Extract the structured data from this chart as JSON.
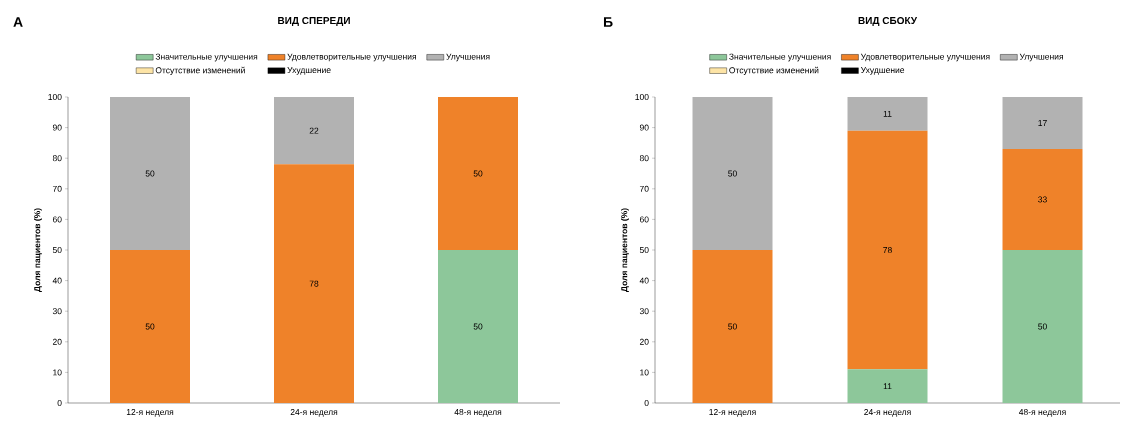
{
  "chart_data": [
    {
      "type": "bar",
      "stacked": true,
      "title": "ВИД СПЕРЕДИ",
      "ylabel": "Доля пациентов (%)",
      "annotations": [
        "А"
      ],
      "legend": "top",
      "categories": [
        "12-я неделя",
        "24-я неделя",
        "48-я неделя"
      ],
      "ylim": [
        0,
        100
      ],
      "yticks": [
        0,
        10,
        20,
        30,
        40,
        50,
        60,
        70,
        80,
        90,
        100
      ],
      "series": [
        {
          "name": "Значительные улучшения",
          "color": "#8dc79a",
          "values": [
            0,
            0,
            50
          ],
          "value_labels": [
            null,
            null,
            "50"
          ]
        },
        {
          "name": "Удовлетворительные улучшения",
          "color": "#ef8229",
          "values": [
            50,
            78,
            50
          ],
          "value_labels": [
            "50",
            "78",
            "50"
          ]
        },
        {
          "name": "Улучшения",
          "color": "#b2b2b2",
          "values": [
            50,
            22,
            0
          ],
          "value_labels": [
            "50",
            "22",
            null
          ]
        },
        {
          "name": "Отсутствие изменений",
          "color": "#fde4a6",
          "values": [
            0,
            0,
            0
          ],
          "value_labels": [
            null,
            null,
            null
          ]
        },
        {
          "name": "Ухудшение",
          "color": "#000000",
          "values": [
            0,
            0,
            0
          ],
          "value_labels": [
            null,
            null,
            null
          ]
        }
      ]
    },
    {
      "type": "bar",
      "stacked": true,
      "title": "ВИД СБОКУ",
      "ylabel": "Доля пациентов (%)",
      "annotations": [
        "Б"
      ],
      "legend": "top",
      "categories": [
        "12-я неделя",
        "24-я неделя",
        "48-я неделя"
      ],
      "ylim": [
        0,
        100
      ],
      "yticks": [
        0,
        10,
        20,
        30,
        40,
        50,
        60,
        70,
        80,
        90,
        100
      ],
      "series": [
        {
          "name": "Значительные улучшения",
          "color": "#8dc79a",
          "values": [
            0,
            11,
            50
          ],
          "value_labels": [
            null,
            "11",
            "50"
          ]
        },
        {
          "name": "Удовлетворительные улучшения",
          "color": "#ef8229",
          "values": [
            50,
            78,
            33
          ],
          "value_labels": [
            "50",
            "78",
            "33"
          ]
        },
        {
          "name": "Улучшения",
          "color": "#b2b2b2",
          "values": [
            50,
            11,
            17
          ],
          "value_labels": [
            "50",
            "11",
            "17"
          ]
        },
        {
          "name": "Отсутствие изменений",
          "color": "#fde4a6",
          "values": [
            0,
            0,
            0
          ],
          "value_labels": [
            null,
            null,
            null
          ]
        },
        {
          "name": "Ухудшение",
          "color": "#000000",
          "values": [
            0,
            0,
            0
          ],
          "value_labels": [
            null,
            null,
            null
          ]
        }
      ]
    }
  ]
}
